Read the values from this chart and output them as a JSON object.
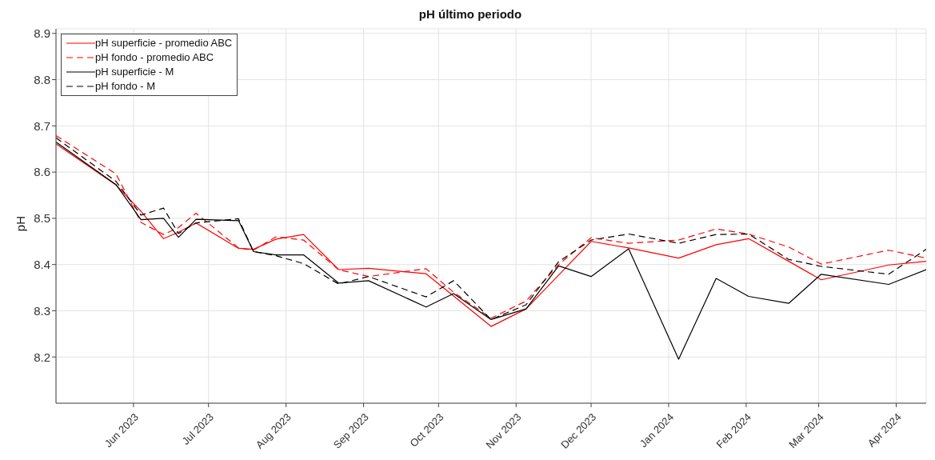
{
  "chart_data": {
    "type": "line",
    "title": "pH último periodo",
    "ylabel": "pH",
    "x": [
      "2023-05-01",
      "2023-05-25",
      "2023-06-04",
      "2023-06-13",
      "2023-06-19",
      "2023-06-26",
      "2023-07-13",
      "2023-07-19",
      "2023-07-28",
      "2023-08-08",
      "2023-08-22",
      "2023-09-03",
      "2023-09-26",
      "2023-10-07",
      "2023-10-22",
      "2023-11-05",
      "2023-11-18",
      "2023-12-01",
      "2023-12-16",
      "2024-01-05",
      "2024-01-20",
      "2024-02-02",
      "2024-02-18",
      "2024-03-02",
      "2024-03-29",
      "2024-04-13"
    ],
    "series": [
      {
        "name": "pH superficie - promedio ABC",
        "color": "#ff0000",
        "line_style": "solid",
        "values": [
          8.661,
          8.572,
          8.515,
          8.456,
          8.47,
          8.49,
          8.435,
          8.433,
          8.455,
          8.465,
          8.389,
          8.392,
          8.38,
          8.332,
          8.266,
          8.304,
          8.377,
          8.45,
          8.436,
          8.414,
          8.443,
          8.456,
          8.407,
          8.367,
          8.399,
          8.407
        ]
      },
      {
        "name": "pH fondo - promedio ABC",
        "color": "#ff0000",
        "line_style": "dashed",
        "values": [
          8.679,
          8.596,
          8.491,
          8.465,
          8.48,
          8.511,
          8.436,
          8.431,
          8.46,
          8.453,
          8.389,
          8.374,
          8.391,
          8.34,
          8.284,
          8.321,
          8.4,
          8.458,
          8.446,
          8.453,
          8.477,
          8.466,
          8.438,
          8.401,
          8.431,
          8.414
        ]
      },
      {
        "name": "pH superficie - M",
        "color": "#000000",
        "line_style": "solid",
        "values": [
          8.665,
          8.573,
          8.497,
          8.5,
          8.459,
          8.498,
          8.495,
          8.428,
          8.421,
          8.421,
          8.36,
          8.365,
          8.308,
          8.337,
          8.281,
          8.304,
          8.397,
          8.374,
          8.434,
          8.195,
          8.37,
          8.331,
          8.316,
          8.379,
          8.357,
          8.389
        ]
      },
      {
        "name": "pH fondo - M",
        "color": "#000000",
        "line_style": "dashed",
        "values": [
          8.674,
          8.58,
          8.507,
          8.522,
          8.467,
          8.49,
          8.499,
          8.428,
          8.419,
          8.402,
          8.358,
          8.374,
          8.33,
          8.365,
          8.281,
          8.313,
          8.406,
          8.453,
          8.466,
          8.446,
          8.465,
          8.466,
          8.411,
          8.396,
          8.379,
          8.433
        ]
      }
    ],
    "xlim": [
      "2023-05-01",
      "2024-04-13"
    ],
    "xticks": [
      {
        "value": "2023-06-01",
        "label": "Jun 2023"
      },
      {
        "value": "2023-07-01",
        "label": "Jul 2023"
      },
      {
        "value": "2023-08-01",
        "label": "Aug 2023"
      },
      {
        "value": "2023-09-01",
        "label": "Sep 2023"
      },
      {
        "value": "2023-10-01",
        "label": "Oct 2023"
      },
      {
        "value": "2023-11-01",
        "label": "Nov 2023"
      },
      {
        "value": "2023-12-01",
        "label": "Dec 2023"
      },
      {
        "value": "2024-01-01",
        "label": "Jan 2024"
      },
      {
        "value": "2024-02-01",
        "label": "Feb 2024"
      },
      {
        "value": "2024-03-01",
        "label": "Mar 2024"
      },
      {
        "value": "2024-04-01",
        "label": "Apr 2024"
      }
    ],
    "ylim": [
      8.1,
      8.91
    ],
    "yticks": [
      8.2,
      8.3,
      8.4,
      8.5,
      8.6,
      8.7,
      8.8,
      8.9
    ],
    "grid": true,
    "legend": "top left"
  }
}
